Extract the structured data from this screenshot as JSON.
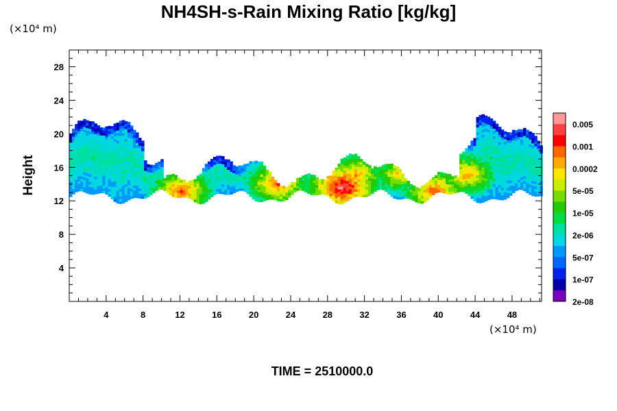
{
  "header": {
    "title": "NH4SH-s-Rain Mixing Ratio [kg/kg]"
  },
  "axes": {
    "yunit": "(×10⁴ m)",
    "xunit": "(×10⁴ m)",
    "ylabel": "Height"
  },
  "footer": {
    "time": "TIME = 2510000.0"
  },
  "chart_data": {
    "type": "heatmap",
    "title": "NH4SH-s-Rain Mixing Ratio [kg/kg]",
    "ylabel": "Height",
    "xlabel": "",
    "xlim": [
      0,
      51.2
    ],
    "ylim": [
      0,
      30
    ],
    "xticks": [
      4,
      8,
      12,
      16,
      20,
      24,
      28,
      32,
      36,
      40,
      44,
      48
    ],
    "yticks": [
      4,
      8,
      12,
      16,
      20,
      24,
      28
    ],
    "colorbar": {
      "labels": [
        "0.005",
        "0.001",
        "0.0002",
        "5e-05",
        "1e-05",
        "2e-06",
        "5e-07",
        "1e-07",
        "2e-08"
      ],
      "colors": [
        "#ff9999",
        "#ff4040",
        "#ff0000",
        "#ff6600",
        "#ffaa00",
        "#ffe600",
        "#ccee00",
        "#77dd00",
        "#22cc00",
        "#00dd44",
        "#00e0a0",
        "#00d8e0",
        "#0099ff",
        "#0066ff",
        "#0022ee",
        "#0000aa",
        "#7700bb"
      ]
    },
    "field": {
      "layer_bottom_m": 12.5,
      "layer_top_m": 19.5,
      "hotspots": [
        {
          "x": 12,
          "y": 13,
          "level": 13
        },
        {
          "x": 22.5,
          "y": 14,
          "level": 13
        },
        {
          "x": 29.5,
          "y": 13.5,
          "level": 15
        },
        {
          "x": 31,
          "y": 15,
          "level": 12
        },
        {
          "x": 35.5,
          "y": 15,
          "level": 11
        },
        {
          "x": 39.5,
          "y": 13,
          "level": 13
        },
        {
          "x": 43,
          "y": 15,
          "level": 12
        }
      ]
    }
  }
}
